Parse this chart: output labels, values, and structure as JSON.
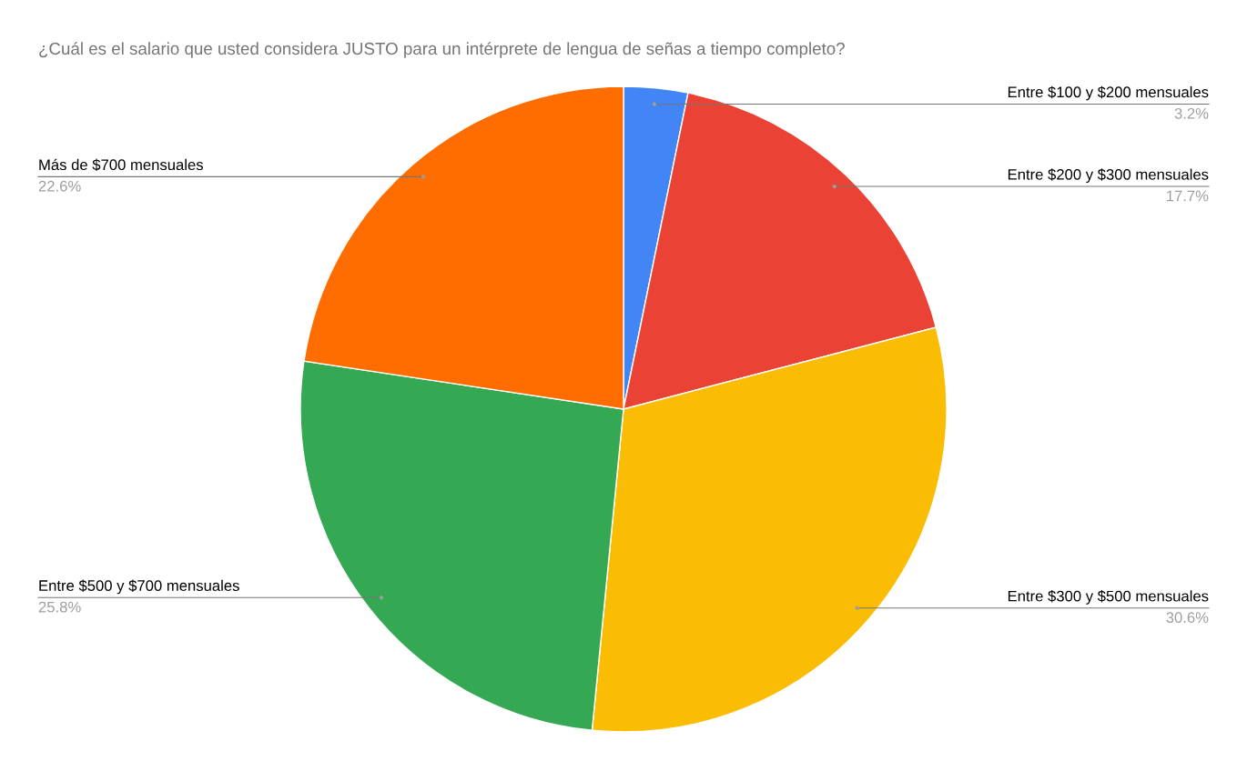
{
  "chart_data": {
    "type": "pie",
    "title": "¿Cuál es el salario que usted considera JUSTO para un intérprete de lengua de señas a tiempo completo?",
    "categories": [
      "Entre $100 y $200 mensuales",
      "Entre $200 y $300 mensuales",
      "Entre $300 y $500 mensuales",
      "Entre $500 y $700 mensuales",
      "Más de $700 mensuales"
    ],
    "values": [
      3.2,
      17.7,
      30.6,
      25.8,
      22.6
    ],
    "colors": [
      "#4285f4",
      "#ea4335",
      "#fbbc04",
      "#34a853",
      "#ff6d01"
    ],
    "value_labels": [
      "3.2%",
      "17.7%",
      "30.6%",
      "25.8%",
      "22.6%"
    ]
  }
}
